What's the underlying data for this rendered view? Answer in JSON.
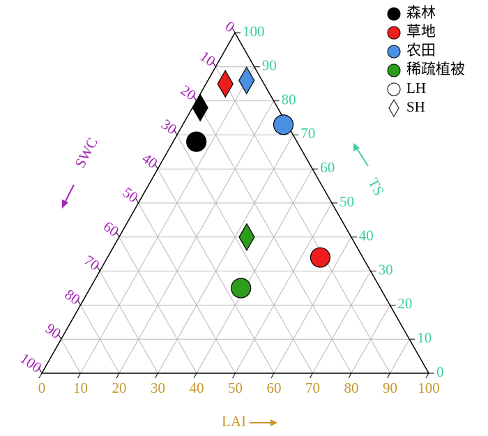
{
  "chart_data": {
    "type": "ternary",
    "axes": {
      "bottom": {
        "label": "LAI",
        "color": "#c8962a",
        "ticks": [
          0,
          10,
          20,
          30,
          40,
          50,
          60,
          70,
          80,
          90,
          100
        ]
      },
      "right": {
        "label": "TS",
        "color": "#3ccf9a",
        "ticks": [
          0,
          10,
          20,
          30,
          40,
          50,
          60,
          70,
          80,
          90,
          100
        ]
      },
      "left": {
        "label": "SWC",
        "color": "#a526b5",
        "ticks": [
          0,
          10,
          20,
          30,
          40,
          50,
          60,
          70,
          80,
          90,
          100
        ]
      }
    },
    "grid": true,
    "legend_position": "upper right",
    "shapes": [
      {
        "name": "LH",
        "marker": "circle"
      },
      {
        "name": "SH",
        "marker": "diamond"
      }
    ],
    "series": [
      {
        "name": "森林",
        "color": "#000000",
        "points": [
          {
            "shape": "LH",
            "LAI": 6,
            "TS": 68,
            "SWC": 26
          },
          {
            "shape": "SH",
            "LAI": 2,
            "TS": 78,
            "SWC": 20
          }
        ]
      },
      {
        "name": "草地",
        "color": "#ee1c1c",
        "points": [
          {
            "shape": "LH",
            "LAI": 55,
            "TS": 34,
            "SWC": 11
          },
          {
            "shape": "SH",
            "LAI": 5,
            "TS": 85,
            "SWC": 10
          }
        ]
      },
      {
        "name": "农田",
        "color": "#4a90e2",
        "points": [
          {
            "shape": "LH",
            "LAI": 26,
            "TS": 73,
            "SWC": 1
          },
          {
            "shape": "SH",
            "LAI": 10,
            "TS": 86,
            "SWC": 4
          }
        ]
      },
      {
        "name": "稀疏植被",
        "color": "#2e9a1e",
        "points": [
          {
            "shape": "LH",
            "LAI": 39,
            "TS": 25,
            "SWC": 36
          },
          {
            "shape": "SH",
            "LAI": 33,
            "TS": 40,
            "SWC": 27
          }
        ]
      }
    ]
  }
}
